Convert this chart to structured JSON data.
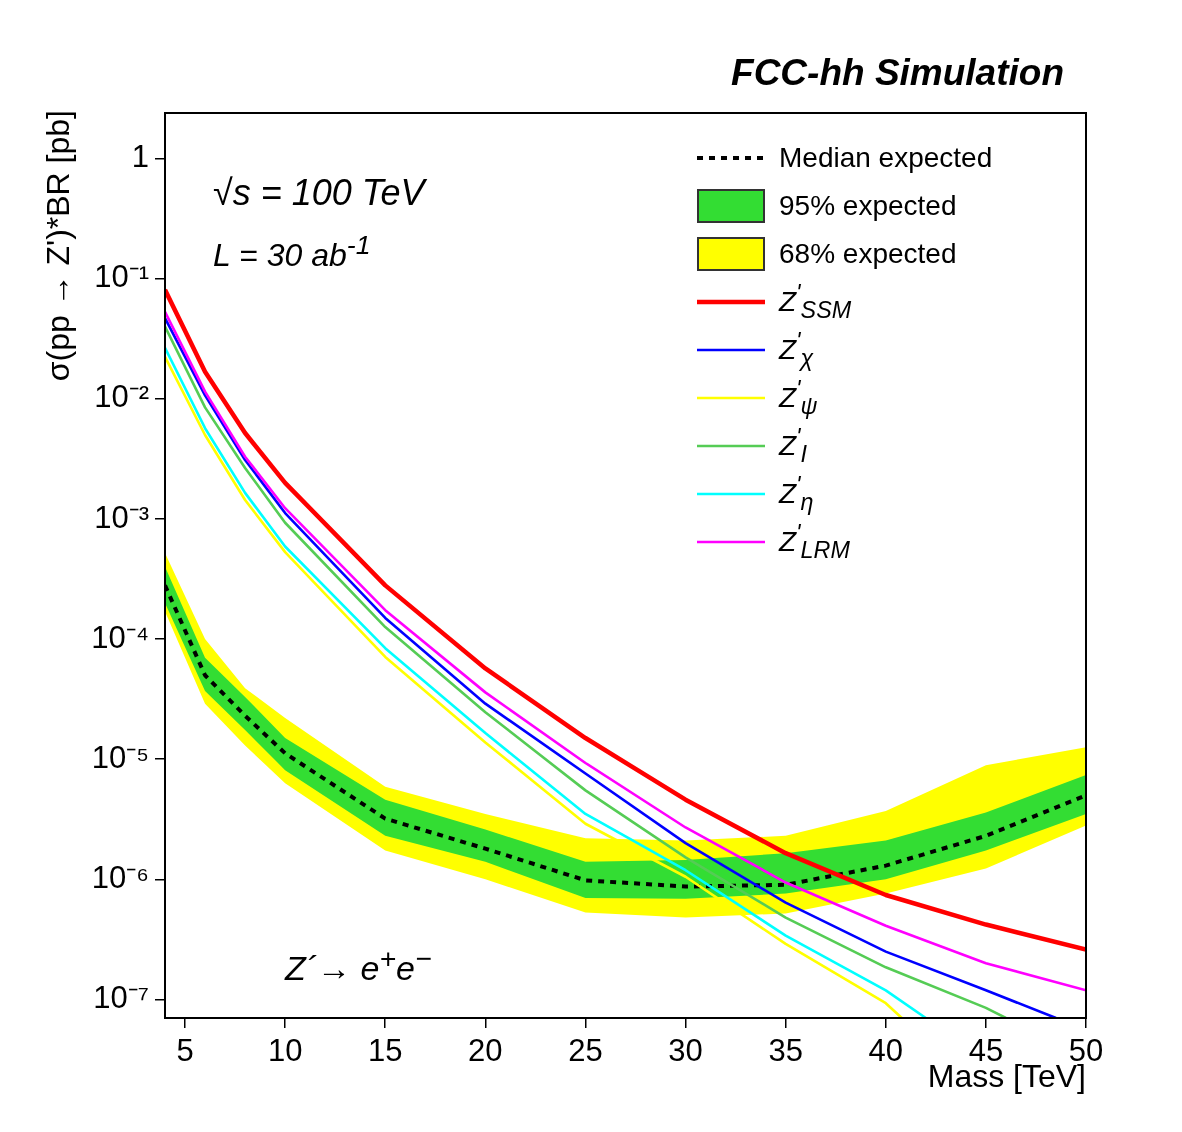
{
  "chart_data": {
    "type": "line",
    "title": "FCC-hh Simulation",
    "xlabel": "Mass [TeV]",
    "ylabel": "σ(pp → Z')*BR [pb]",
    "annotations": [
      "√s = 100 TeV",
      "L = 30 ab$^{-1}$",
      "Z´→ e$^{+}$e$^{−}$"
    ],
    "x": [
      4,
      6,
      8,
      10,
      15,
      20,
      25,
      30,
      35,
      40,
      45,
      50
    ],
    "series": [
      {
        "name": "Median expected",
        "color": "#000000",
        "line_style": "dotted",
        "values": [
          0.00028,
          5e-05,
          2.3e-05,
          1.12e-05,
          3.2e-06,
          1.8e-06,
          9.8e-07,
          8.7e-07,
          9e-07,
          1.3e-06,
          2.3e-06,
          5e-06
        ]
      },
      {
        "name": "95% expected",
        "color": "#33dd33",
        "values": [
          null,
          null,
          null,
          null,
          null,
          null,
          null,
          null,
          null,
          null,
          null,
          null
        ],
        "lower": [
          0.0002,
          3.7e-05,
          1.75e-05,
          8.1e-06,
          2.3e-06,
          1.4e-06,
          7e-07,
          6.9e-07,
          7.6e-07,
          1e-06,
          1.74e-06,
          3.5e-06
        ],
        "upper": [
          0.0004,
          7e-05,
          3.3e-05,
          1.5e-05,
          4.6e-06,
          2.6e-06,
          1.4e-06,
          1.45e-06,
          1.65e-06,
          2.1e-06,
          3.6e-06,
          7.4e-06
        ]
      },
      {
        "name": "68% expected",
        "color": "#ffff00",
        "values": [
          null,
          null,
          null,
          null,
          null,
          null,
          null,
          null,
          null,
          null,
          null,
          null
        ],
        "lower": [
          0.00017,
          2.9e-05,
          1.3e-05,
          6.3e-06,
          1.74e-06,
          1e-06,
          5.3e-07,
          4.8e-07,
          5.2e-07,
          7.6e-07,
          1.23e-06,
          2.8e-06
        ],
        "upper": [
          0.00052,
          0.0001,
          3.9e-05,
          2.2e-05,
          5.9e-06,
          3.5e-06,
          2.2e-06,
          2.1e-06,
          2.3e-06,
          3.7e-06,
          8.9e-06,
          1.26e-05
        ]
      },
      {
        "name": "Z$^{'}$$_{SSM}$",
        "color": "#ff0000",
        "values": [
          0.081,
          0.0168,
          0.0052,
          0.002,
          0.00028,
          5.7e-05,
          1.5e-05,
          4.6e-06,
          1.65e-06,
          7.4e-07,
          4.2e-07,
          2.6e-07
        ]
      },
      {
        "name": "Z$^{'}$$_{χ}$",
        "color": "#0000ff",
        "x": [
          4,
          6,
          8,
          10,
          15,
          20,
          25,
          30,
          35,
          40,
          45,
          48.5
        ],
        "values": [
          0.047,
          0.0107,
          0.0031,
          0.00112,
          0.00015,
          2.9e-05,
          7.6e-06,
          2e-06,
          6.4e-07,
          2.5e-07,
          1.19e-07,
          7e-08
        ]
      },
      {
        "name": "Z$^{'}$$_{ψ}$",
        "color": "#ffff00",
        "x": [
          4,
          6,
          8,
          10,
          15,
          20,
          25,
          30,
          35,
          40,
          40.8
        ],
        "values": [
          0.0224,
          0.005,
          0.00144,
          0.00053,
          7.1e-05,
          1.38e-05,
          2.9e-06,
          1.05e-06,
          2.9e-07,
          9.3e-08,
          7e-08
        ]
      },
      {
        "name": "Z$^{'}$$_{I}$",
        "color": "#55cc55",
        "x": [
          4,
          6,
          8,
          10,
          15,
          20,
          25,
          30,
          35,
          40,
          45,
          46
        ],
        "values": [
          0.04,
          0.0085,
          0.00266,
          0.00093,
          0.000126,
          2.46e-05,
          5.5e-06,
          1.52e-06,
          4.8e-07,
          1.85e-07,
          8.5e-08,
          7e-08
        ]
      },
      {
        "name": "Z$^{'}$$_{η}$",
        "color": "#00ffff",
        "x": [
          4,
          6,
          8,
          10,
          15,
          20,
          25,
          30,
          35,
          40,
          42
        ],
        "values": [
          0.0266,
          0.0057,
          0.00165,
          0.00059,
          8.4e-05,
          1.65e-05,
          3.5e-06,
          1.19e-06,
          3.4e-07,
          1.19e-07,
          7e-08
        ]
      },
      {
        "name": "Z$^{'}$$_{LRM}$",
        "color": "#ff00ff",
        "values": [
          0.053,
          0.0115,
          0.0033,
          0.00123,
          0.000174,
          3.6e-05,
          9.3e-06,
          2.7e-06,
          9.4e-07,
          4.1e-07,
          2e-07,
          1.19e-07
        ]
      }
    ],
    "xlim": [
      4,
      50
    ],
    "xticks": [
      5,
      10,
      15,
      20,
      25,
      30,
      35,
      40,
      45,
      50
    ],
    "ylim": [
      7e-08,
      2.4
    ],
    "yticks": [
      {
        "value": 1e-07,
        "label": "10⁻⁷"
      },
      {
        "value": 1e-06,
        "label": "10⁻⁶"
      },
      {
        "value": 1e-05,
        "label": "10⁻⁵"
      },
      {
        "value": 0.0001,
        "label": "10⁻⁴"
      },
      {
        "value": 0.001,
        "label": "10⁻³"
      },
      {
        "value": 0.01,
        "label": "10⁻²"
      },
      {
        "value": 0.1,
        "label": "10⁻¹"
      },
      1
    ],
    "log": true,
    "grid": false,
    "legend": "top right",
    "marker": "none",
    "line_style": "solid"
  }
}
